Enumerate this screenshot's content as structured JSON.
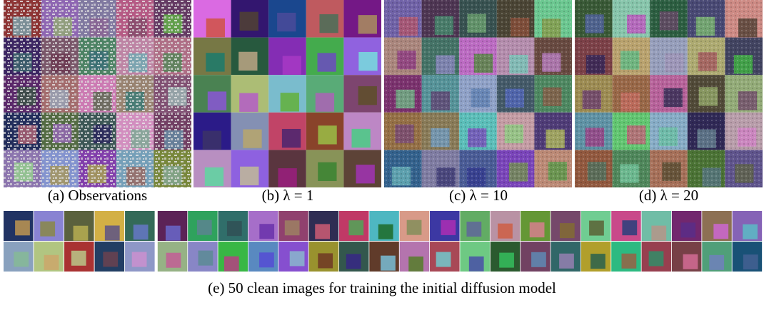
{
  "panels": [
    {
      "caption": "(a) Observations"
    },
    {
      "caption": "(b) λ = 1"
    },
    {
      "caption": "(c) λ = 10"
    },
    {
      "caption": "(d) λ = 20"
    }
  ],
  "bottom": {
    "caption": "(e) 50 clean images for training the initial diffusion model"
  }
}
